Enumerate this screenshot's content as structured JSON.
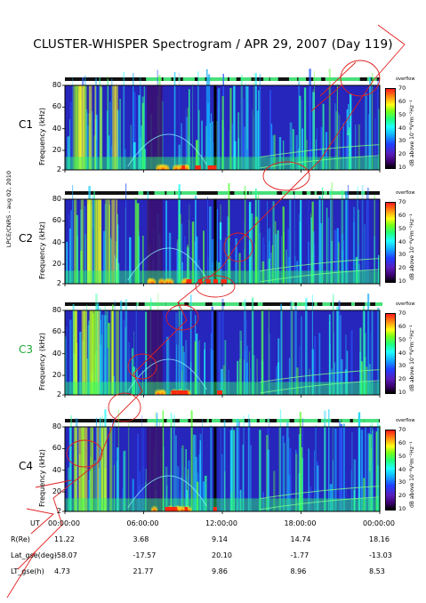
{
  "title": "CLUSTER-WHISPER Spectrogram / APR 29, 2007 (Day 119)",
  "side_label": "LPCE/CNRS - aug 02, 2010",
  "chart_data": {
    "type": "heatmap",
    "panels": [
      {
        "label": "C1",
        "label_color": "#000000"
      },
      {
        "label": "C2",
        "label_color": "#000000"
      },
      {
        "label": "C3",
        "label_color": "#1ea836"
      },
      {
        "label": "C4",
        "label_color": "#000000"
      }
    ],
    "ylabel": "Frequency (kHz)",
    "yticks": [
      "80",
      "60",
      "40",
      "20",
      "2"
    ],
    "ylim": [
      2,
      80
    ],
    "colorbar": {
      "ticks": [
        "70",
        "60",
        "50",
        "40",
        "30",
        "20",
        "10"
      ],
      "range": [
        10,
        70
      ],
      "label": "dB above 10⁻⁸V²m⁻²Hz⁻¹",
      "mode_label": "overflow"
    },
    "x_axis_label": "UT",
    "xticks": [
      "00:00:00",
      "06:00:00",
      "12:00:00",
      "18:00:00",
      "00:00:00"
    ],
    "ephemeris": [
      {
        "label": "R(Re)",
        "values": [
          "11.22",
          "3.68",
          "9.14",
          "14.74",
          "18.16"
        ]
      },
      {
        "label": "Lat_gse(deg)",
        "values": [
          "-58.07",
          "-17.57",
          "20.10",
          "-1.77",
          "-13.03"
        ]
      },
      {
        "label": "LT_gse(h)",
        "values": [
          "4.73",
          "21.77",
          "9.86",
          "8.96",
          "8.53"
        ]
      }
    ]
  }
}
